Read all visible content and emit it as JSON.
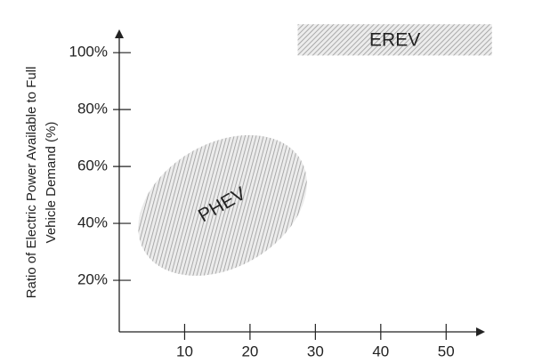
{
  "chart_data": {
    "type": "region",
    "ylabel": [
      "Ratio of Electric Power Available to Full",
      "Vehicle Demand (%)"
    ],
    "xlim": [
      0,
      55
    ],
    "ylim": [
      0,
      106
    ],
    "xticks": [
      10,
      20,
      30,
      40,
      50
    ],
    "yticks": [
      {
        "value": 20,
        "label": "20%"
      },
      {
        "value": 40,
        "label": "40%"
      },
      {
        "value": 60,
        "label": "60%"
      },
      {
        "value": 80,
        "label": "80%"
      },
      {
        "value": 100,
        "label": "100%"
      }
    ],
    "color": "#9a9a9a",
    "regions": [
      {
        "name": "PHEV",
        "shape": "ellipse",
        "x": [
          2.9,
          28.7
        ],
        "y": [
          21.6,
          71
        ]
      },
      {
        "name": "EREV",
        "shape": "rect",
        "x": [
          27.3,
          57
        ],
        "y": [
          99,
          110
        ]
      }
    ]
  }
}
